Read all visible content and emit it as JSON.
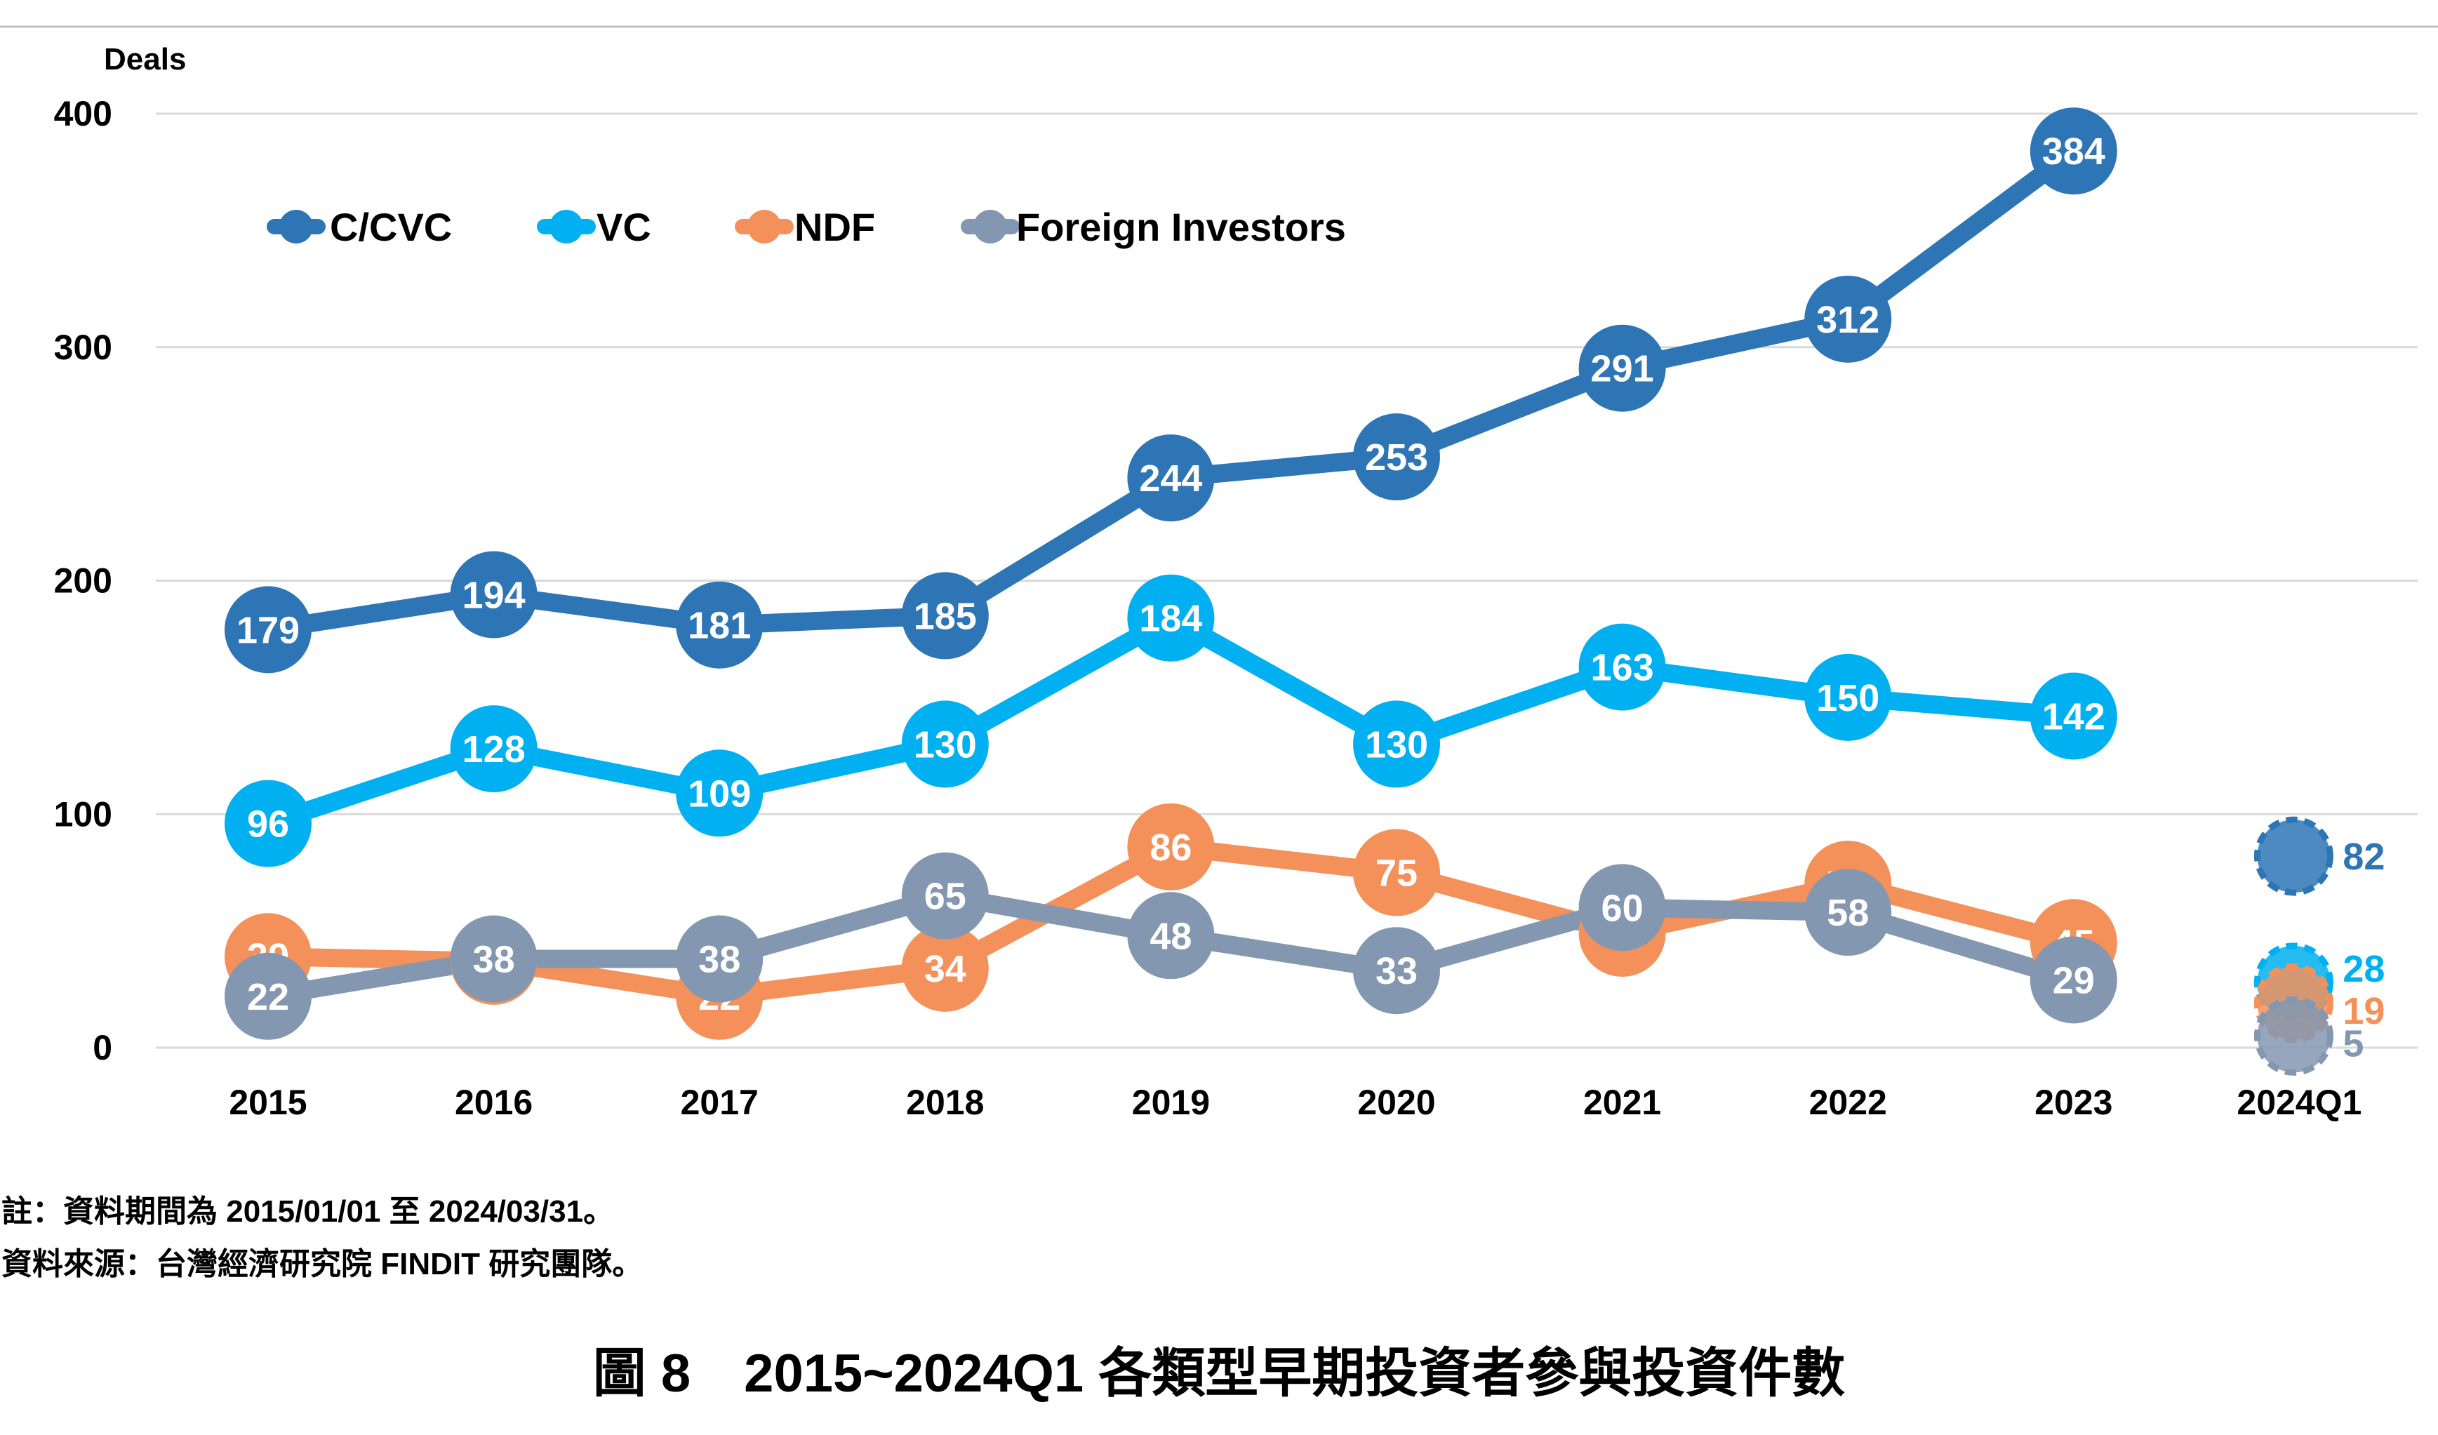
{
  "chart_data": {
    "type": "line",
    "ylabel": "Deals",
    "ylim": [
      0,
      400
    ],
    "yticks": [
      0,
      100,
      200,
      300,
      400
    ],
    "categories": [
      "2015",
      "2016",
      "2017",
      "2018",
      "2019",
      "2020",
      "2021",
      "2022",
      "2023",
      "2024Q1"
    ],
    "grid": true,
    "legend_position": "top-left",
    "series": [
      {
        "name": "C/CVC",
        "color": "#2E75B6",
        "values": [
          179,
          194,
          181,
          185,
          244,
          253,
          291,
          312,
          384,
          82
        ]
      },
      {
        "name": "VC",
        "color": "#00B0F0",
        "values": [
          96,
          128,
          109,
          130,
          184,
          130,
          163,
          150,
          142,
          28
        ]
      },
      {
        "name": "NDF",
        "color": "#F4915A",
        "values": [
          39,
          37,
          22,
          34,
          86,
          75,
          49,
          70,
          45,
          19
        ]
      },
      {
        "name": "Foreign Investors",
        "color": "#8497B0",
        "values": [
          22,
          38,
          38,
          65,
          48,
          33,
          60,
          58,
          29,
          5
        ]
      }
    ],
    "label_colors": {
      "C/CVC": "#2E75B6",
      "VC": "#00B0F0",
      "NDF": "#F4915A",
      "Foreign Investors": "#8497B0"
    }
  },
  "notes": {
    "line1": "註：資料期間為 2015/01/01 至 2024/03/31。",
    "line2": "資料來源：台灣經濟研究院 FINDIT 研究團隊。"
  },
  "figure_title": "圖 8　2015~2024Q1 各類型早期投資者參與投資件數"
}
